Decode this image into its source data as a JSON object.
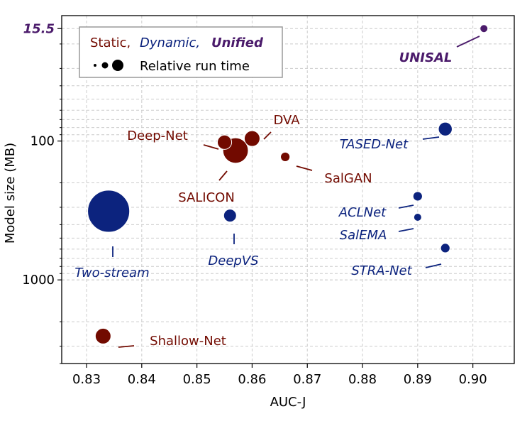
{
  "chart_data": {
    "type": "scatter",
    "xlabel": "AUC-J",
    "ylabel": "Model size (MB)",
    "x_ticks": [
      0.83,
      0.84,
      0.85,
      0.86,
      0.87,
      0.88,
      0.89,
      0.9
    ],
    "xlim": [
      0.8255,
      0.9075
    ],
    "y_scale": "log",
    "y_inverted": true,
    "ylim": [
      12.5,
      4000
    ],
    "y_tick_labels": [
      {
        "value": 15.5,
        "label": "15.5",
        "highlight": true
      },
      {
        "value": 100,
        "label": "100",
        "highlight": false
      },
      {
        "value": 1000,
        "label": "1000",
        "highlight": false
      }
    ],
    "grid": true,
    "legend": {
      "position": "top-left",
      "categories": [
        {
          "key": "static",
          "label": "Static,"
        },
        {
          "key": "dynamic",
          "label": "Dynamic,"
        },
        {
          "key": "unified",
          "label": "Unified"
        }
      ],
      "size_label": "Relative run time"
    },
    "colors": {
      "static": "#720a00",
      "dynamic": "#0c237e",
      "unified": "#4b1b6b"
    },
    "points": [
      {
        "name": "UNISAL",
        "category": "unified",
        "x": 0.902,
        "y": 15.5,
        "run_time": 0.9
      },
      {
        "name": "TASED-Net",
        "category": "dynamic",
        "x": 0.895,
        "y": 82,
        "run_time": 2.8
      },
      {
        "name": "DVA",
        "category": "static",
        "x": 0.86,
        "y": 96,
        "run_time": 3.6
      },
      {
        "name": "Deep-Net",
        "category": "static",
        "x": 0.855,
        "y": 102,
        "run_time": 3.0
      },
      {
        "name": "SALICON",
        "category": "static",
        "x": 0.857,
        "y": 117,
        "run_time": 9.5
      },
      {
        "name": "SalGAN",
        "category": "static",
        "x": 0.866,
        "y": 130,
        "run_time": 1.3
      },
      {
        "name": "ACLNet",
        "category": "dynamic",
        "x": 0.89,
        "y": 250,
        "run_time": 1.3
      },
      {
        "name": "SalEMA",
        "category": "dynamic",
        "x": 0.89,
        "y": 354,
        "run_time": 0.9
      },
      {
        "name": "DeepVS",
        "category": "dynamic",
        "x": 0.856,
        "y": 344,
        "run_time": 2.4
      },
      {
        "name": "Two-stream",
        "category": "dynamic",
        "x": 0.834,
        "y": 320,
        "run_time": 26
      },
      {
        "name": "STRA-Net",
        "category": "dynamic",
        "x": 0.895,
        "y": 590,
        "run_time": 1.3
      },
      {
        "name": "Shallow-Net",
        "category": "static",
        "x": 0.833,
        "y": 2540,
        "run_time": 3.6
      }
    ]
  }
}
